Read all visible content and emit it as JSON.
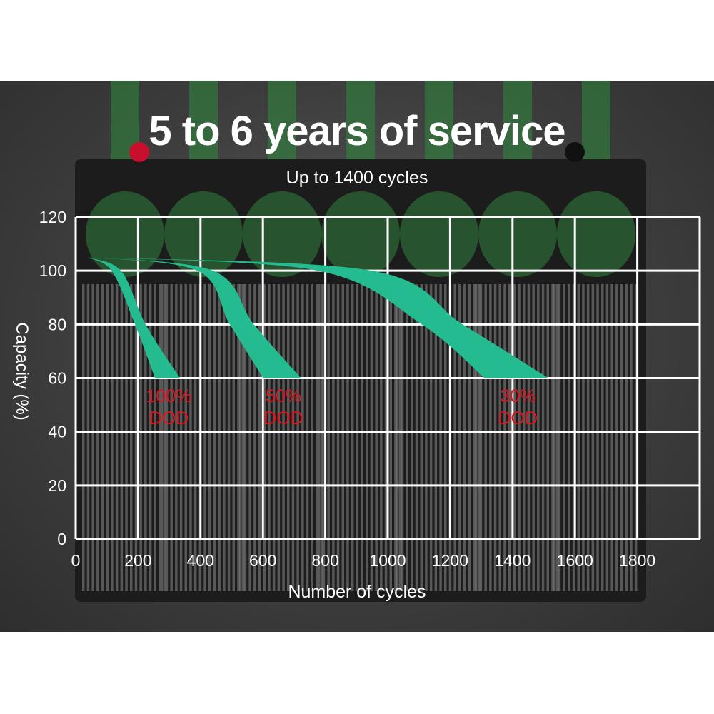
{
  "chart_data": {
    "type": "area",
    "title": "5 to 6 years of service",
    "subtitle": "Up to 1400 cycles",
    "xlabel": "Number of cycles",
    "ylabel": "Capacity (%)",
    "xlim": [
      0,
      2000
    ],
    "ylim": [
      0,
      120
    ],
    "x_ticks": [
      "0",
      "200",
      "400",
      "600",
      "800",
      "1000",
      "1200",
      "1400",
      "1600",
      "1800"
    ],
    "y_ticks": [
      "0",
      "20",
      "40",
      "60",
      "80",
      "100",
      "120"
    ],
    "grid": true,
    "band_color": "#25bb90",
    "label_color": "#e0141e",
    "series": [
      {
        "name": "100% DOD",
        "label_line1": "100%",
        "label_line2": "DOD",
        "inner": [
          [
            35,
            105
          ],
          [
            115,
            100
          ],
          [
            190,
            80
          ],
          [
            254,
            60
          ]
        ],
        "outer": [
          [
            35,
            105
          ],
          [
            145,
            100
          ],
          [
            224,
            80
          ],
          [
            334,
            60
          ]
        ]
      },
      {
        "name": "50% DOD",
        "label_line1": "50%",
        "label_line2": "DOD",
        "inner": [
          [
            35,
            105
          ],
          [
            390,
            100
          ],
          [
            494,
            80
          ],
          [
            601,
            60
          ]
        ],
        "outer": [
          [
            35,
            105
          ],
          [
            440,
            100
          ],
          [
            571,
            80
          ],
          [
            722,
            60
          ]
        ]
      },
      {
        "name": "30% DOD",
        "label_line1": "30%",
        "label_line2": "DOD",
        "inner": [
          [
            35,
            105
          ],
          [
            777,
            100
          ],
          [
            1109,
            80
          ],
          [
            1310,
            60
          ]
        ],
        "outer": [
          [
            35,
            105
          ],
          [
            949,
            100
          ],
          [
            1240,
            80
          ],
          [
            1515,
            60
          ]
        ]
      }
    ]
  }
}
